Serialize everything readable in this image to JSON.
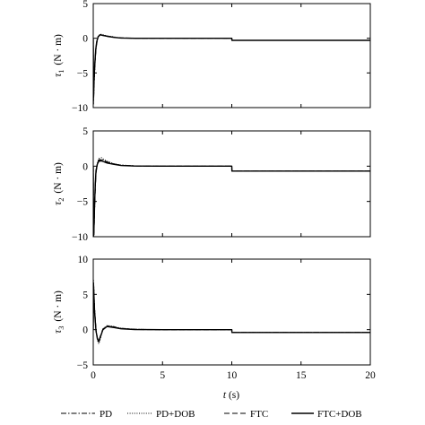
{
  "chart_data": [
    {
      "type": "line",
      "ylabel_sym": "τ",
      "ylabel_sub": "1",
      "ylabel_unit": "(N · m)",
      "xlim": [
        0,
        20
      ],
      "ylim": [
        -10,
        5
      ],
      "yticks": [
        -10,
        -5,
        0,
        5
      ],
      "xticks": [
        0,
        5,
        10,
        15,
        20
      ],
      "show_xticklabels": false,
      "series": [
        {
          "name": "PD",
          "style": "dashdot",
          "x": [
            0,
            0.02,
            0.05,
            0.08,
            0.12,
            0.18,
            0.25,
            0.35,
            0.5,
            0.7,
            1.0,
            1.5,
            2,
            3,
            5,
            10,
            10.01,
            10.3,
            20
          ],
          "y": [
            0,
            -9.5,
            -7.5,
            -6,
            -4,
            -2,
            -0.8,
            0.2,
            0.5,
            0.45,
            0.3,
            0.15,
            0.05,
            0,
            0,
            0,
            -0.3,
            -0.3,
            -0.3
          ]
        },
        {
          "name": "PD+DOB",
          "style": "dotted",
          "x": [
            0,
            0.02,
            0.05,
            0.08,
            0.12,
            0.18,
            0.25,
            0.35,
            0.5,
            0.7,
            1.0,
            1.5,
            2,
            3,
            5,
            10,
            10.01,
            10.3,
            20
          ],
          "y": [
            0,
            -9,
            -7,
            -5.5,
            -3.8,
            -1.8,
            -0.6,
            0.3,
            0.6,
            0.5,
            0.35,
            0.2,
            0.05,
            0,
            0,
            0,
            -0.3,
            -0.3,
            -0.3
          ]
        },
        {
          "name": "FTC",
          "style": "dashed",
          "x": [
            0,
            0.02,
            0.05,
            0.08,
            0.12,
            0.18,
            0.25,
            0.35,
            0.5,
            0.7,
            1.0,
            1.5,
            2,
            3,
            5,
            10,
            10.01,
            10.3,
            20
          ],
          "y": [
            0,
            -8.8,
            -6.8,
            -5.2,
            -3.6,
            -1.7,
            -0.6,
            0.25,
            0.55,
            0.45,
            0.3,
            0.15,
            0.05,
            0,
            0,
            0,
            -0.3,
            -0.3,
            -0.3
          ]
        },
        {
          "name": "FTC+DOB",
          "style": "solid",
          "x": [
            0,
            0.02,
            0.05,
            0.08,
            0.12,
            0.18,
            0.25,
            0.35,
            0.5,
            0.7,
            1.0,
            1.5,
            2,
            3,
            5,
            10,
            10.01,
            10.3,
            20
          ],
          "y": [
            0,
            -8.5,
            -6.5,
            -5,
            -3.5,
            -1.6,
            -0.5,
            0.2,
            0.5,
            0.4,
            0.28,
            0.12,
            0.03,
            0,
            0,
            0,
            -0.3,
            -0.3,
            -0.3
          ]
        }
      ]
    },
    {
      "type": "line",
      "ylabel_sym": "τ",
      "ylabel_sub": "2",
      "ylabel_unit": "(N · m)",
      "xlim": [
        0,
        20
      ],
      "ylim": [
        -10,
        5
      ],
      "yticks": [
        -10,
        -5,
        0,
        5
      ],
      "xticks": [
        0,
        5,
        10,
        15,
        20
      ],
      "show_xticklabels": false,
      "series": [
        {
          "name": "PD",
          "style": "dashdot",
          "x": [
            0,
            0.02,
            0.05,
            0.1,
            0.15,
            0.2,
            0.3,
            0.4,
            0.6,
            0.8,
            1.0,
            1.5,
            2,
            3,
            5,
            10,
            10.01,
            10.3,
            20
          ],
          "y": [
            0,
            -10,
            -9.8,
            -6,
            -3,
            -1,
            0.3,
            0.9,
            1.0,
            0.8,
            0.6,
            0.3,
            0.15,
            0.05,
            0,
            0,
            -0.7,
            -0.7,
            -0.7
          ]
        },
        {
          "name": "PD+DOB",
          "style": "dotted",
          "x": [
            0,
            0.02,
            0.05,
            0.1,
            0.15,
            0.2,
            0.3,
            0.4,
            0.6,
            0.8,
            1.0,
            1.5,
            2,
            3,
            5,
            10,
            10.01,
            10.3,
            20
          ],
          "y": [
            0,
            -10,
            -9.5,
            -5.8,
            -2.8,
            -0.8,
            0.5,
            1.1,
            1.2,
            0.9,
            0.7,
            0.35,
            0.15,
            0.05,
            0,
            0,
            -0.7,
            -0.7,
            -0.7
          ]
        },
        {
          "name": "FTC",
          "style": "dashed",
          "x": [
            0,
            0.02,
            0.05,
            0.1,
            0.15,
            0.2,
            0.3,
            0.4,
            0.6,
            0.8,
            1.0,
            1.5,
            2,
            3,
            5,
            10,
            10.01,
            10.3,
            20
          ],
          "y": [
            0,
            -10,
            -9.3,
            -5.5,
            -2.6,
            -0.7,
            0.4,
            0.8,
            0.9,
            0.7,
            0.55,
            0.3,
            0.12,
            0.03,
            0,
            0,
            -0.7,
            -0.7,
            -0.7
          ]
        },
        {
          "name": "FTC+DOB",
          "style": "solid",
          "x": [
            0,
            0.02,
            0.05,
            0.1,
            0.15,
            0.2,
            0.3,
            0.4,
            0.6,
            0.8,
            1.0,
            1.5,
            2,
            3,
            5,
            10,
            10.01,
            10.3,
            20
          ],
          "y": [
            0,
            -10,
            -9,
            -5.2,
            -2.4,
            -0.6,
            0.3,
            0.7,
            0.75,
            0.6,
            0.45,
            0.25,
            0.1,
            0.02,
            0,
            0,
            -0.7,
            -0.7,
            -0.7
          ]
        }
      ]
    },
    {
      "type": "line",
      "ylabel_sym": "τ",
      "ylabel_sub": "3",
      "ylabel_unit": "(N · m)",
      "xlim": [
        0,
        20
      ],
      "ylim": [
        -5,
        10
      ],
      "yticks": [
        -5,
        0,
        5,
        10
      ],
      "xticks": [
        0,
        5,
        10,
        15,
        20
      ],
      "show_xticklabels": true,
      "series": [
        {
          "name": "PD",
          "style": "dashdot",
          "x": [
            0,
            0.02,
            0.05,
            0.1,
            0.2,
            0.3,
            0.4,
            0.5,
            0.7,
            1.0,
            1.5,
            2,
            3,
            5,
            10,
            10.01,
            10.3,
            20
          ],
          "y": [
            0,
            7,
            5.5,
            3,
            0,
            -1.3,
            -1.8,
            -1.2,
            0,
            0.5,
            0.4,
            0.2,
            0.05,
            0,
            0,
            -0.4,
            -0.4,
            -0.4
          ]
        },
        {
          "name": "PD+DOB",
          "style": "dotted",
          "x": [
            0,
            0.02,
            0.05,
            0.1,
            0.2,
            0.3,
            0.4,
            0.5,
            0.7,
            1.0,
            1.5,
            2,
            3,
            5,
            10,
            10.01,
            10.3,
            20
          ],
          "y": [
            0,
            6.8,
            5.2,
            2.8,
            -0.2,
            -1.5,
            -2.0,
            -1.4,
            0.1,
            0.6,
            0.45,
            0.2,
            0.05,
            0,
            0,
            -0.4,
            -0.4,
            -0.4
          ]
        },
        {
          "name": "FTC",
          "style": "dashed",
          "x": [
            0,
            0.02,
            0.05,
            0.1,
            0.2,
            0.3,
            0.4,
            0.5,
            0.7,
            1.0,
            1.5,
            2,
            3,
            5,
            10,
            10.01,
            10.3,
            20
          ],
          "y": [
            0,
            6.5,
            5,
            2.6,
            -0.1,
            -1.2,
            -1.6,
            -1.0,
            0.1,
            0.5,
            0.35,
            0.15,
            0.03,
            0,
            0,
            -0.4,
            -0.4,
            -0.4
          ]
        },
        {
          "name": "FTC+DOB",
          "style": "solid",
          "x": [
            0,
            0.02,
            0.05,
            0.1,
            0.2,
            0.3,
            0.4,
            0.5,
            0.7,
            1.0,
            1.5,
            2,
            3,
            5,
            10,
            10.01,
            10.3,
            20
          ],
          "y": [
            0,
            6.3,
            4.8,
            2.4,
            -0.2,
            -1.3,
            -1.7,
            -1.1,
            0,
            0.45,
            0.3,
            0.12,
            0.02,
            0,
            0,
            -0.4,
            -0.4,
            -0.4
          ]
        }
      ]
    }
  ],
  "xlabel_sym": "t",
  "xlabel_unit": " (s)",
  "legend": [
    {
      "name": "PD",
      "style": "dashdot"
    },
    {
      "name": "PD+DOB",
      "style": "dotted"
    },
    {
      "name": "FTC",
      "style": "dashed"
    },
    {
      "name": "FTC+DOB",
      "style": "solid"
    }
  ]
}
